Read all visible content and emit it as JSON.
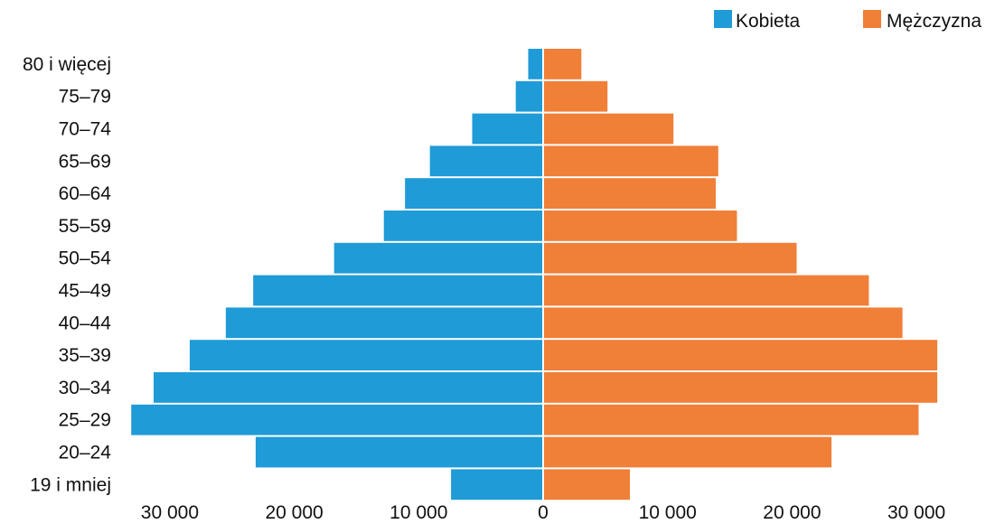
{
  "chart_data": {
    "type": "bar",
    "orientation": "horizontal-population-pyramid",
    "categories": [
      "80 i więcej",
      "75–79",
      "70–74",
      "65–69",
      "60–64",
      "55–59",
      "50–54",
      "45–49",
      "40–44",
      "35–39",
      "30–34",
      "25–29",
      "20–24",
      "19 i mniej"
    ],
    "series": [
      {
        "name": "Kobieta",
        "color": "#1f9bd7",
        "side": "left",
        "values": [
          1200,
          2200,
          5700,
          9100,
          11100,
          12800,
          16800,
          23300,
          25500,
          28400,
          31300,
          33100,
          23100,
          7400
        ]
      },
      {
        "name": "Mężczyzna",
        "color": "#f07f38",
        "side": "right",
        "values": [
          3000,
          5100,
          10400,
          14000,
          13800,
          15500,
          20300,
          26100,
          28800,
          31600,
          31600,
          30100,
          23100,
          6900
        ]
      }
    ],
    "x_ticks": [
      {
        "value": -30000,
        "label": "30 000"
      },
      {
        "value": -20000,
        "label": "20 000"
      },
      {
        "value": -10000,
        "label": "10 000"
      },
      {
        "value": 0,
        "label": "0"
      },
      {
        "value": 10000,
        "label": "10 000"
      },
      {
        "value": 20000,
        "label": "20 000"
      },
      {
        "value": 30000,
        "label": "30 000"
      }
    ],
    "xlim": [
      -33100,
      31600
    ],
    "legend_position": "top-right",
    "grid": false
  }
}
